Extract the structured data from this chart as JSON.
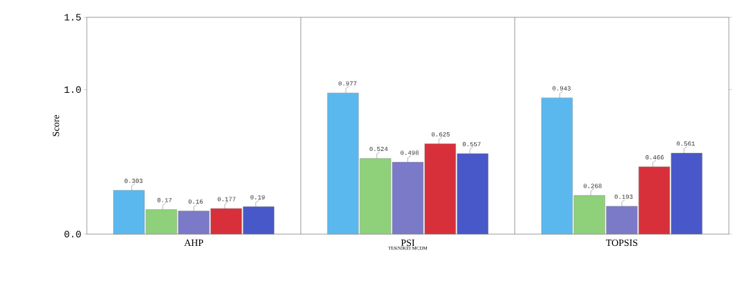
{
  "chart_data": {
    "type": "bar",
    "xlabel": "TEKNIKEI MCDM",
    "ylabel": "Score",
    "categories": [
      "AHP",
      "PSI",
      "TOPSIS"
    ],
    "series": [
      {
        "color": "#5ab8ee",
        "values": [
          0.303,
          0.977,
          0.943
        ]
      },
      {
        "color": "#8fd07a",
        "values": [
          0.17,
          0.524,
          0.268
        ]
      },
      {
        "color": "#7a7ac8",
        "values": [
          0.16,
          0.498,
          0.193
        ]
      },
      {
        "color": "#d8303a",
        "values": [
          0.177,
          0.625,
          0.466
        ]
      },
      {
        "color": "#4858c8",
        "values": [
          0.19,
          0.557,
          0.561
        ]
      }
    ],
    "ylim": [
      0,
      1.5
    ],
    "yticks": [
      {
        "value": 0,
        "label": "0.0"
      },
      {
        "value": 1,
        "label": "1.0"
      },
      {
        "value": 1.5,
        "label": "1.5"
      }
    ],
    "data_labels": true,
    "grid": false
  }
}
